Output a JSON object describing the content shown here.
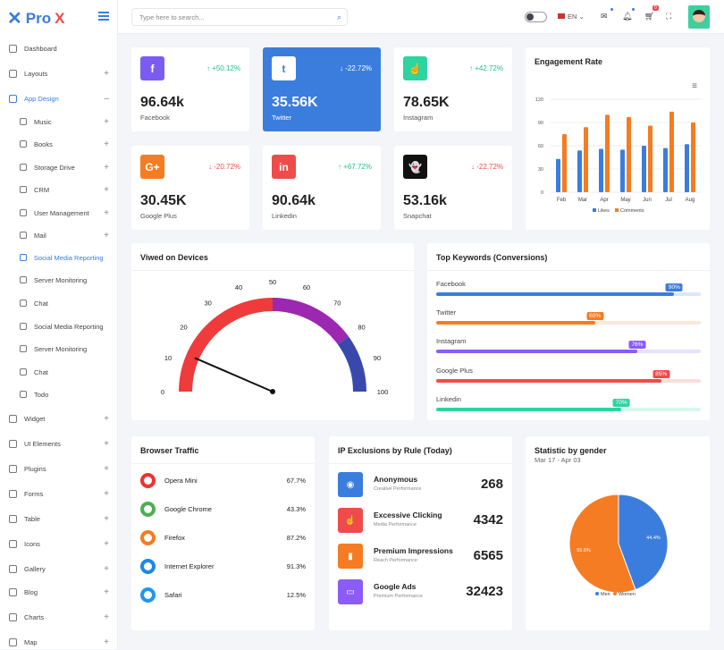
{
  "brand": {
    "name_a": "Pro",
    "name_b": "X"
  },
  "search": {
    "placeholder": "Type here to search..."
  },
  "header": {
    "lang": "EN",
    "cart_badge": "0"
  },
  "sidebar": [
    {
      "label": "Dashboard",
      "plus": ""
    },
    {
      "label": "Layouts",
      "plus": "+"
    },
    {
      "label": "App Design",
      "plus": "–",
      "active": true
    },
    {
      "label": "Music",
      "plus": "+",
      "sub": true
    },
    {
      "label": "Books",
      "plus": "+",
      "sub": true
    },
    {
      "label": "Storage Drive",
      "plus": "+",
      "sub": true
    },
    {
      "label": "CRM",
      "plus": "+",
      "sub": true
    },
    {
      "label": "User Management",
      "plus": "+",
      "sub": true
    },
    {
      "label": "Mail",
      "plus": "+",
      "sub": true
    },
    {
      "label": "Social Media Reporting",
      "plus": "",
      "sub": true,
      "active": true
    },
    {
      "label": "Server Monitoring",
      "plus": "",
      "sub": true
    },
    {
      "label": "Chat",
      "plus": "",
      "sub": true
    },
    {
      "label": "Social Media Reporting",
      "plus": "",
      "sub": true
    },
    {
      "label": "Server Monitoring",
      "plus": "",
      "sub": true
    },
    {
      "label": "Chat",
      "plus": "",
      "sub": true
    },
    {
      "label": "Todo",
      "plus": "",
      "sub": true
    },
    {
      "label": "Widget",
      "plus": "+"
    },
    {
      "label": "UI Elements",
      "plus": "+"
    },
    {
      "label": "Plugins",
      "plus": "+"
    },
    {
      "label": "Forms",
      "plus": "+"
    },
    {
      "label": "Table",
      "plus": "+"
    },
    {
      "label": "Icons",
      "plus": "+"
    },
    {
      "label": "Gallery",
      "plus": "+"
    },
    {
      "label": "Blog",
      "plus": "+"
    },
    {
      "label": "Charts",
      "plus": "+"
    },
    {
      "label": "Map",
      "plus": "+"
    }
  ],
  "stats": [
    {
      "icon": "f",
      "value": "96.64k",
      "label": "Facebook",
      "change": "+50.12%",
      "dir": "up",
      "color": "#7b5cf0"
    },
    {
      "icon": "t",
      "value": "35.56K",
      "label": "Twitter",
      "change": "-22.72%",
      "dir": "down",
      "color": "#fff",
      "highlight": true
    },
    {
      "icon": "☝",
      "value": "78.65K",
      "label": "Instagram",
      "change": "+42.72%",
      "dir": "up",
      "color": "#2dd4a0"
    },
    {
      "icon": "G+",
      "value": "30.45K",
      "label": "Google Plus",
      "change": "-20.72%",
      "dir": "down",
      "color": "#f57c22"
    },
    {
      "icon": "in",
      "value": "90.64k",
      "label": "Linkedin",
      "change": "+67.72%",
      "dir": "up",
      "color": "#ef4b4b"
    },
    {
      "icon": "👻",
      "value": "53.16k",
      "label": "Snapchat",
      "change": "-22.72%",
      "dir": "down",
      "color": "#111"
    }
  ],
  "chart_data": {
    "type": "bar",
    "title": "Engagement Rate",
    "categories": [
      "Feb",
      "Mar",
      "Apr",
      "May",
      "Jun",
      "Jul",
      "Aug"
    ],
    "series": [
      {
        "name": "Likes",
        "color": "#3b7ddd",
        "values": [
          43,
          54,
          56,
          55,
          60,
          57,
          62
        ]
      },
      {
        "name": "Comments",
        "color": "#f57c22",
        "values": [
          75,
          84,
          100,
          97,
          86,
          104,
          90
        ]
      }
    ],
    "ylim": [
      0,
      120
    ],
    "yticks": [
      "0",
      "30",
      "60",
      "90",
      "120"
    ]
  },
  "gauge": {
    "title": "Viwed on Devices",
    "ticks": [
      "0",
      "10",
      "20",
      "30",
      "40",
      "50",
      "60",
      "70",
      "80",
      "90",
      "100"
    ],
    "value": 13
  },
  "keywords": {
    "title": "Top Keywords (Conversions)",
    "items": [
      {
        "name": "Facebook",
        "value": 90,
        "label": "90%",
        "color": "#3b7ddd",
        "track": "#dbe6fa"
      },
      {
        "name": "Twitter",
        "value": 60,
        "label": "60%",
        "color": "#f57c22",
        "track": "#fde7d6"
      },
      {
        "name": "Instagram",
        "value": 76,
        "label": "76%",
        "color": "#8b5cf6",
        "track": "#e9e1fd"
      },
      {
        "name": "Google Plus",
        "value": 85,
        "label": "85%",
        "color": "#ef4b4b",
        "track": "#fcdcdc"
      },
      {
        "name": "Linkedin",
        "value": 70,
        "label": "70%",
        "color": "#2dd4a0",
        "track": "#d6f7ec"
      }
    ]
  },
  "browsers": {
    "title": "Browser Traffic",
    "items": [
      {
        "name": "Opera Mini",
        "pct": "67.7%",
        "color": "#e33"
      },
      {
        "name": "Google Chrome",
        "pct": "43.3%",
        "color": "#4caf50"
      },
      {
        "name": "Firefox",
        "pct": "87.2%",
        "color": "#f57c22"
      },
      {
        "name": "Internet Explorer",
        "pct": "91.3%",
        "color": "#1e88e5"
      },
      {
        "name": "Safari",
        "pct": "12.5%",
        "color": "#2196f3"
      }
    ]
  },
  "ip": {
    "title": "IP Exclusions by Rule (Today)",
    "items": [
      {
        "title": "Anonymous",
        "sub": "Creative Performance",
        "value": "268",
        "color": "#3b7ddd",
        "icon": "◉"
      },
      {
        "title": "Excessive Clicking",
        "sub": "Media Performance",
        "value": "4342",
        "color": "#ef4b4b",
        "icon": "☝"
      },
      {
        "title": "Premium Impressions",
        "sub": "Reach Performance",
        "value": "6565",
        "color": "#f57c22",
        "icon": "▮"
      },
      {
        "title": "Google Ads",
        "sub": "Premium Performance",
        "value": "32423",
        "color": "#8b5cf6",
        "icon": "▭"
      }
    ]
  },
  "gender": {
    "title": "Statistic by gender",
    "range": "Mar 17 - Apr 03",
    "slices": [
      {
        "name": "Men",
        "value": 44.4,
        "label": "44.4%",
        "color": "#3b7ddd"
      },
      {
        "name": "Women",
        "value": 55.6,
        "label": "55.6%",
        "color": "#f57c22"
      }
    ]
  }
}
